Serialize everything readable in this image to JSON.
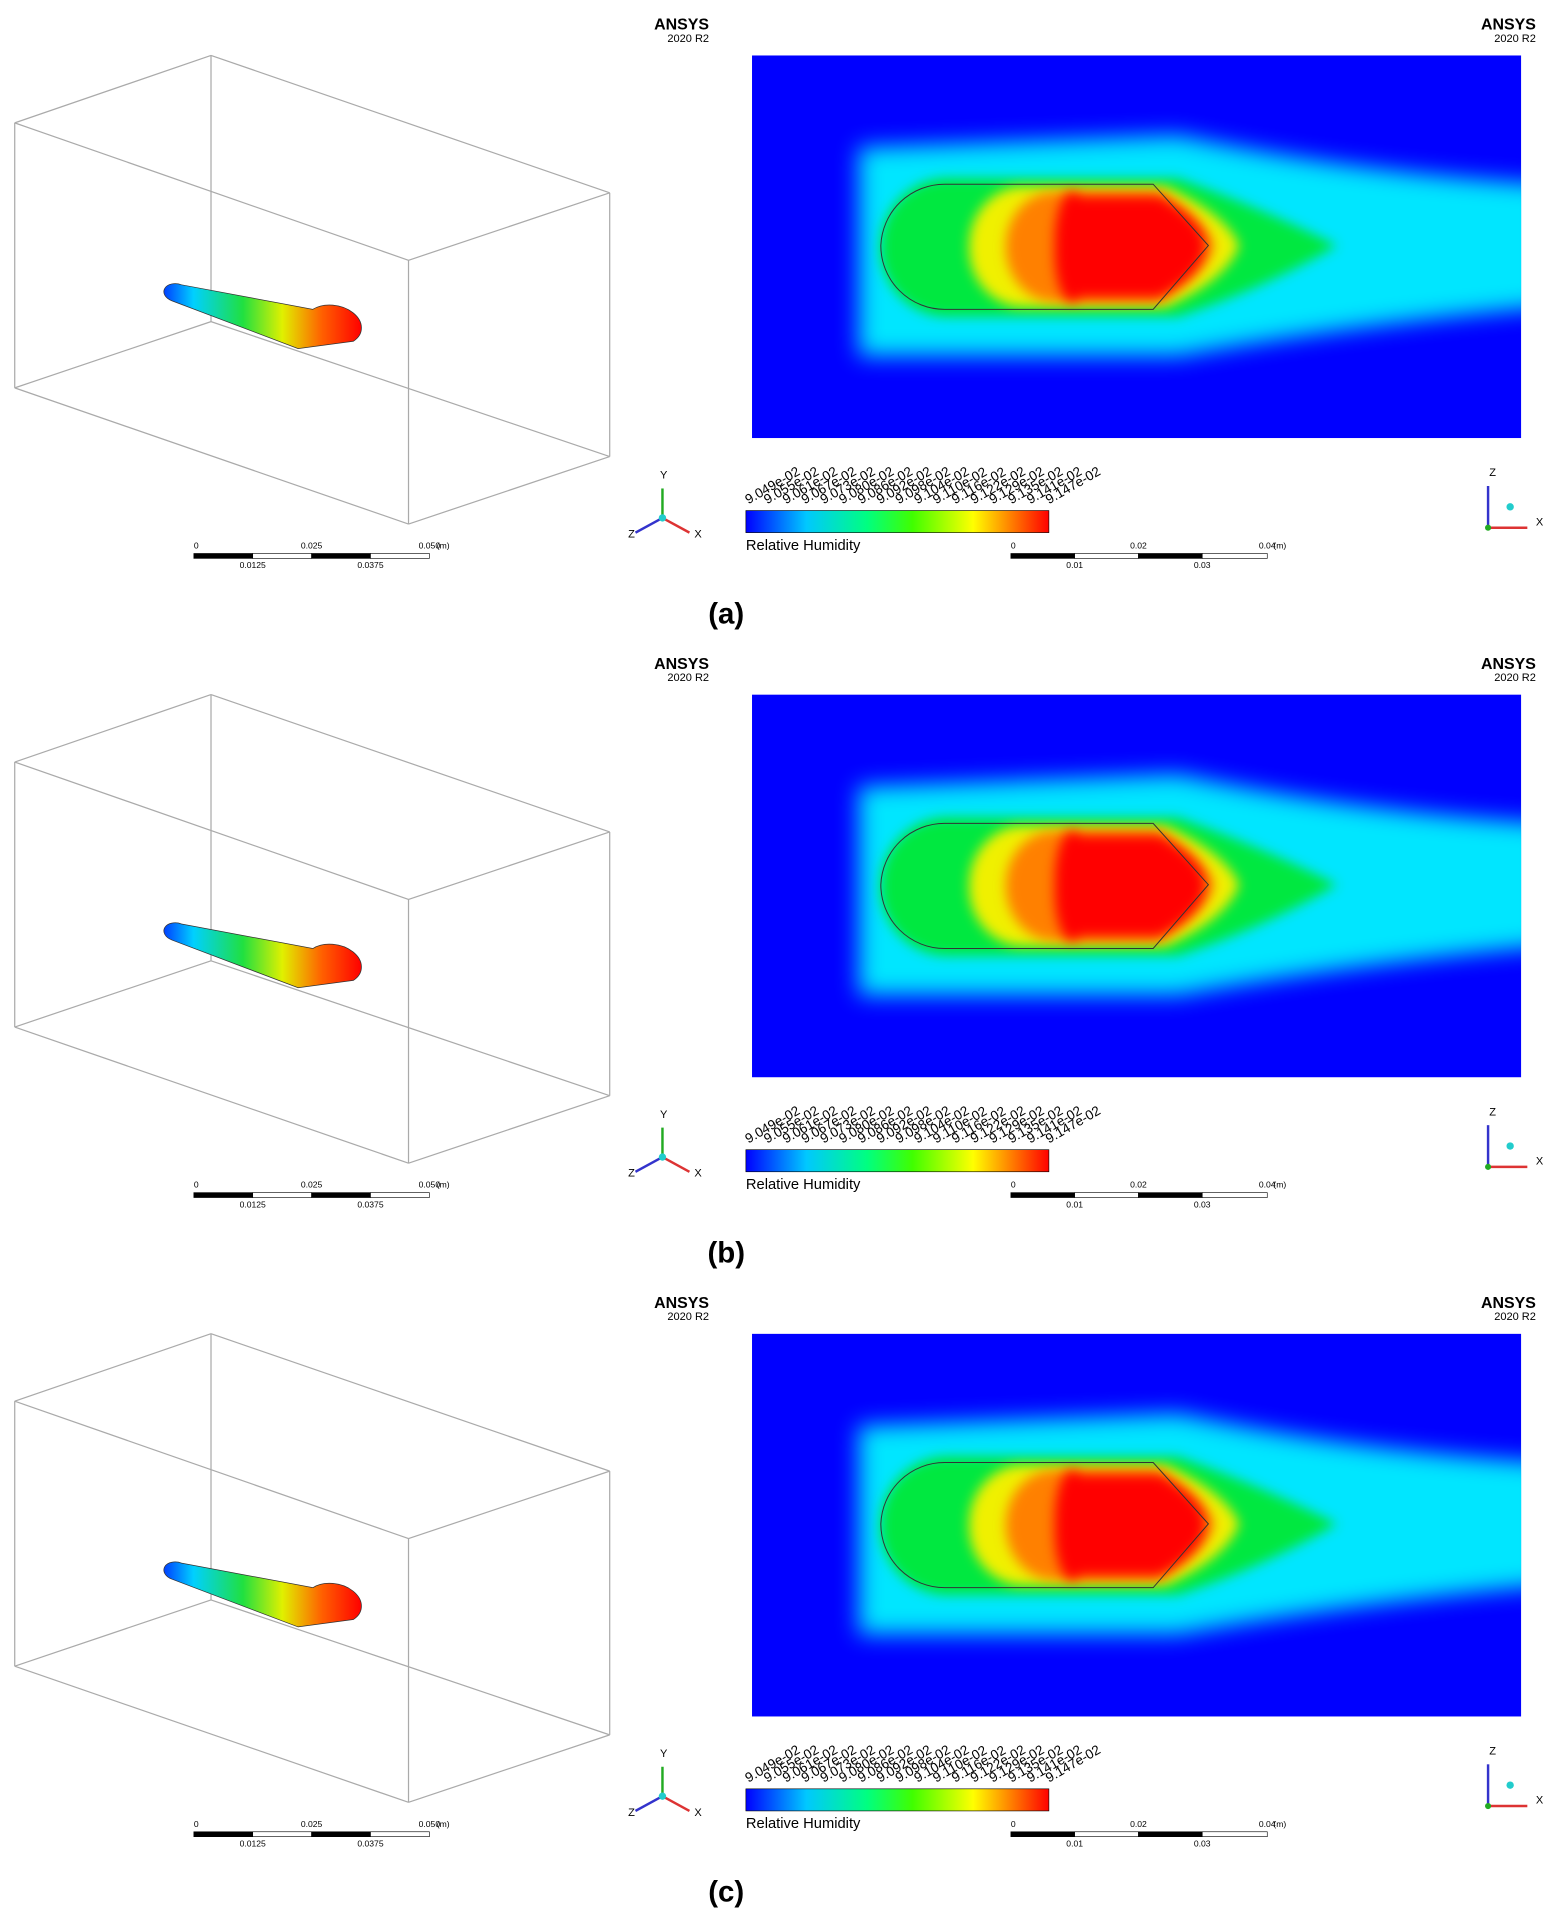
{
  "common": {
    "brand": "ANSYS",
    "version": "2020 R2",
    "colorbar": {
      "title": "Relative Humidity",
      "ticks": [
        "9.049e-02",
        "9.055e-02",
        "9.061e-02",
        "9.067e-02",
        "9.073e-02",
        "9.080e-02",
        "9.086e-02",
        "9.092e-02",
        "9.098e-02",
        "9.104e-02",
        "9.110e-02",
        "9.116e-02",
        "9.122e-02",
        "9.129e-02",
        "9.135e-02",
        "9.141e-02",
        "9.147e-02"
      ]
    },
    "left_scale": {
      "top": [
        "0",
        "0.025",
        "0.050"
      ],
      "bottom": [
        "0.0125",
        "0.0375"
      ],
      "unit": "(m)"
    },
    "right_scale": {
      "top": [
        "0",
        "0.02",
        "0.04"
      ],
      "bottom": [
        "0.01",
        "0.03"
      ],
      "unit": "(m)"
    },
    "axes": {
      "x": "X",
      "y": "Y",
      "z": "Z"
    }
  },
  "panels": [
    {
      "label": "(a)"
    },
    {
      "label": "(b)"
    },
    {
      "label": "(c)"
    }
  ]
}
